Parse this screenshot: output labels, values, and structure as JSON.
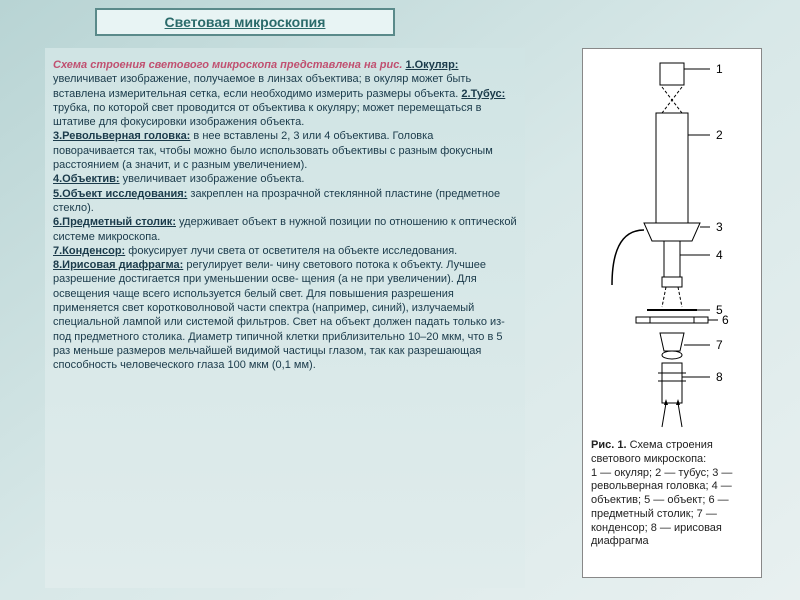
{
  "title": "Световая микроскопия",
  "intro": "Схема строения светового микроскопа представлена на рис.",
  "items": [
    {
      "label": "1.Окуляр:",
      "text": " увеличивает изображение, получаемое в линзах объектива; в окуляр может быть вставлена измерительная сетка, если необходимо измерить размеры объекта. "
    },
    {
      "label": "2.Тубус:",
      "text": " трубка, по которой свет проводится от объектива к окуляру; может перемещаться в штативе для фокусировки изображения объекта."
    },
    {
      "label": "3.Револьверная головка:",
      "text": " в нее вставлены 2, 3 или 4 объектива. Головка поворачивается так, чтобы можно было использовать объективы с разным фокусным расстоянием (а значит, и с разным увеличением)."
    },
    {
      "label": "4.Объектив:",
      "text": " увеличивает изображение объекта."
    },
    {
      "label": "5.Объект исследования:",
      "text": " закреплен на прозрачной стеклянной пластине (предметное стекло)."
    },
    {
      "label": "6.Предметный столик:",
      "text": " удерживает объект в нужной позиции по отношению к оптической системе микроскопа."
    },
    {
      "label": "7.Конденсор:",
      "text": " фокусирует лучи света от осветителя на объекте исследования."
    },
    {
      "label": "8.Ирисовая диафрагма:",
      "text": " регулирует вели- чину светового потока к объекту. Лучшее разрешение достигается при уменьшении осве- щения (а не при увеличении). Для освещения чаще всего используется белый свет. Для повышения разрешения применяется свет коротковолновой части спектра (например, синий), излучаемый специальной лампой или системой фильтров. Свет на объект должен падать только из-под предметного столика. Диаметр типичной клетки приблизительно 10–20 мкм, что в 5 раз меньше размеров мельчайшей видимой частицы глазом, так как разрешающая способность человеческого глаза 100 мкм (0,1 мм)."
    }
  ],
  "caption_title": "Рис. 1.",
  "caption_body": " Схема строения светового микроскопа:",
  "caption_list": "1 — окуляр; 2 — тубус; 3 — револьверная головка; 4 — объектив; 5 — объект; 6 — предметный столик; 7 — конденсор; 8 — ирисовая диафрагма",
  "diagram": {
    "labels": [
      "1",
      "2",
      "3",
      "4",
      "5",
      "6",
      "7",
      "8"
    ],
    "stroke": "#000000",
    "fill": "#ffffff"
  }
}
